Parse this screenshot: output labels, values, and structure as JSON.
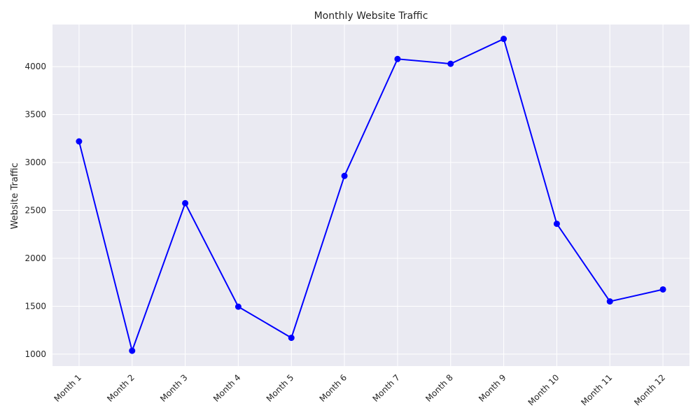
{
  "chart_data": {
    "type": "line",
    "title": "Monthly Website Traffic",
    "xlabel": "",
    "ylabel": "Website Traffic",
    "categories": [
      "Month 1",
      "Month 2",
      "Month 3",
      "Month 4",
      "Month 5",
      "Month 6",
      "Month 7",
      "Month 8",
      "Month 9",
      "Month 10",
      "Month 11",
      "Month 12"
    ],
    "series": [
      {
        "name": "Website Traffic",
        "values": [
          3220,
          1035,
          2575,
          1495,
          1170,
          2860,
          4080,
          4030,
          4290,
          2360,
          1550,
          1675
        ],
        "color": "#0000ff",
        "marker": "circle"
      }
    ],
    "yticks": [
      1000,
      1500,
      2000,
      2500,
      3000,
      3500,
      4000
    ],
    "ylim": [
      875,
      4440
    ],
    "grid": true,
    "background_color": "#eaeaf2",
    "grid_color": "#ffffff"
  }
}
